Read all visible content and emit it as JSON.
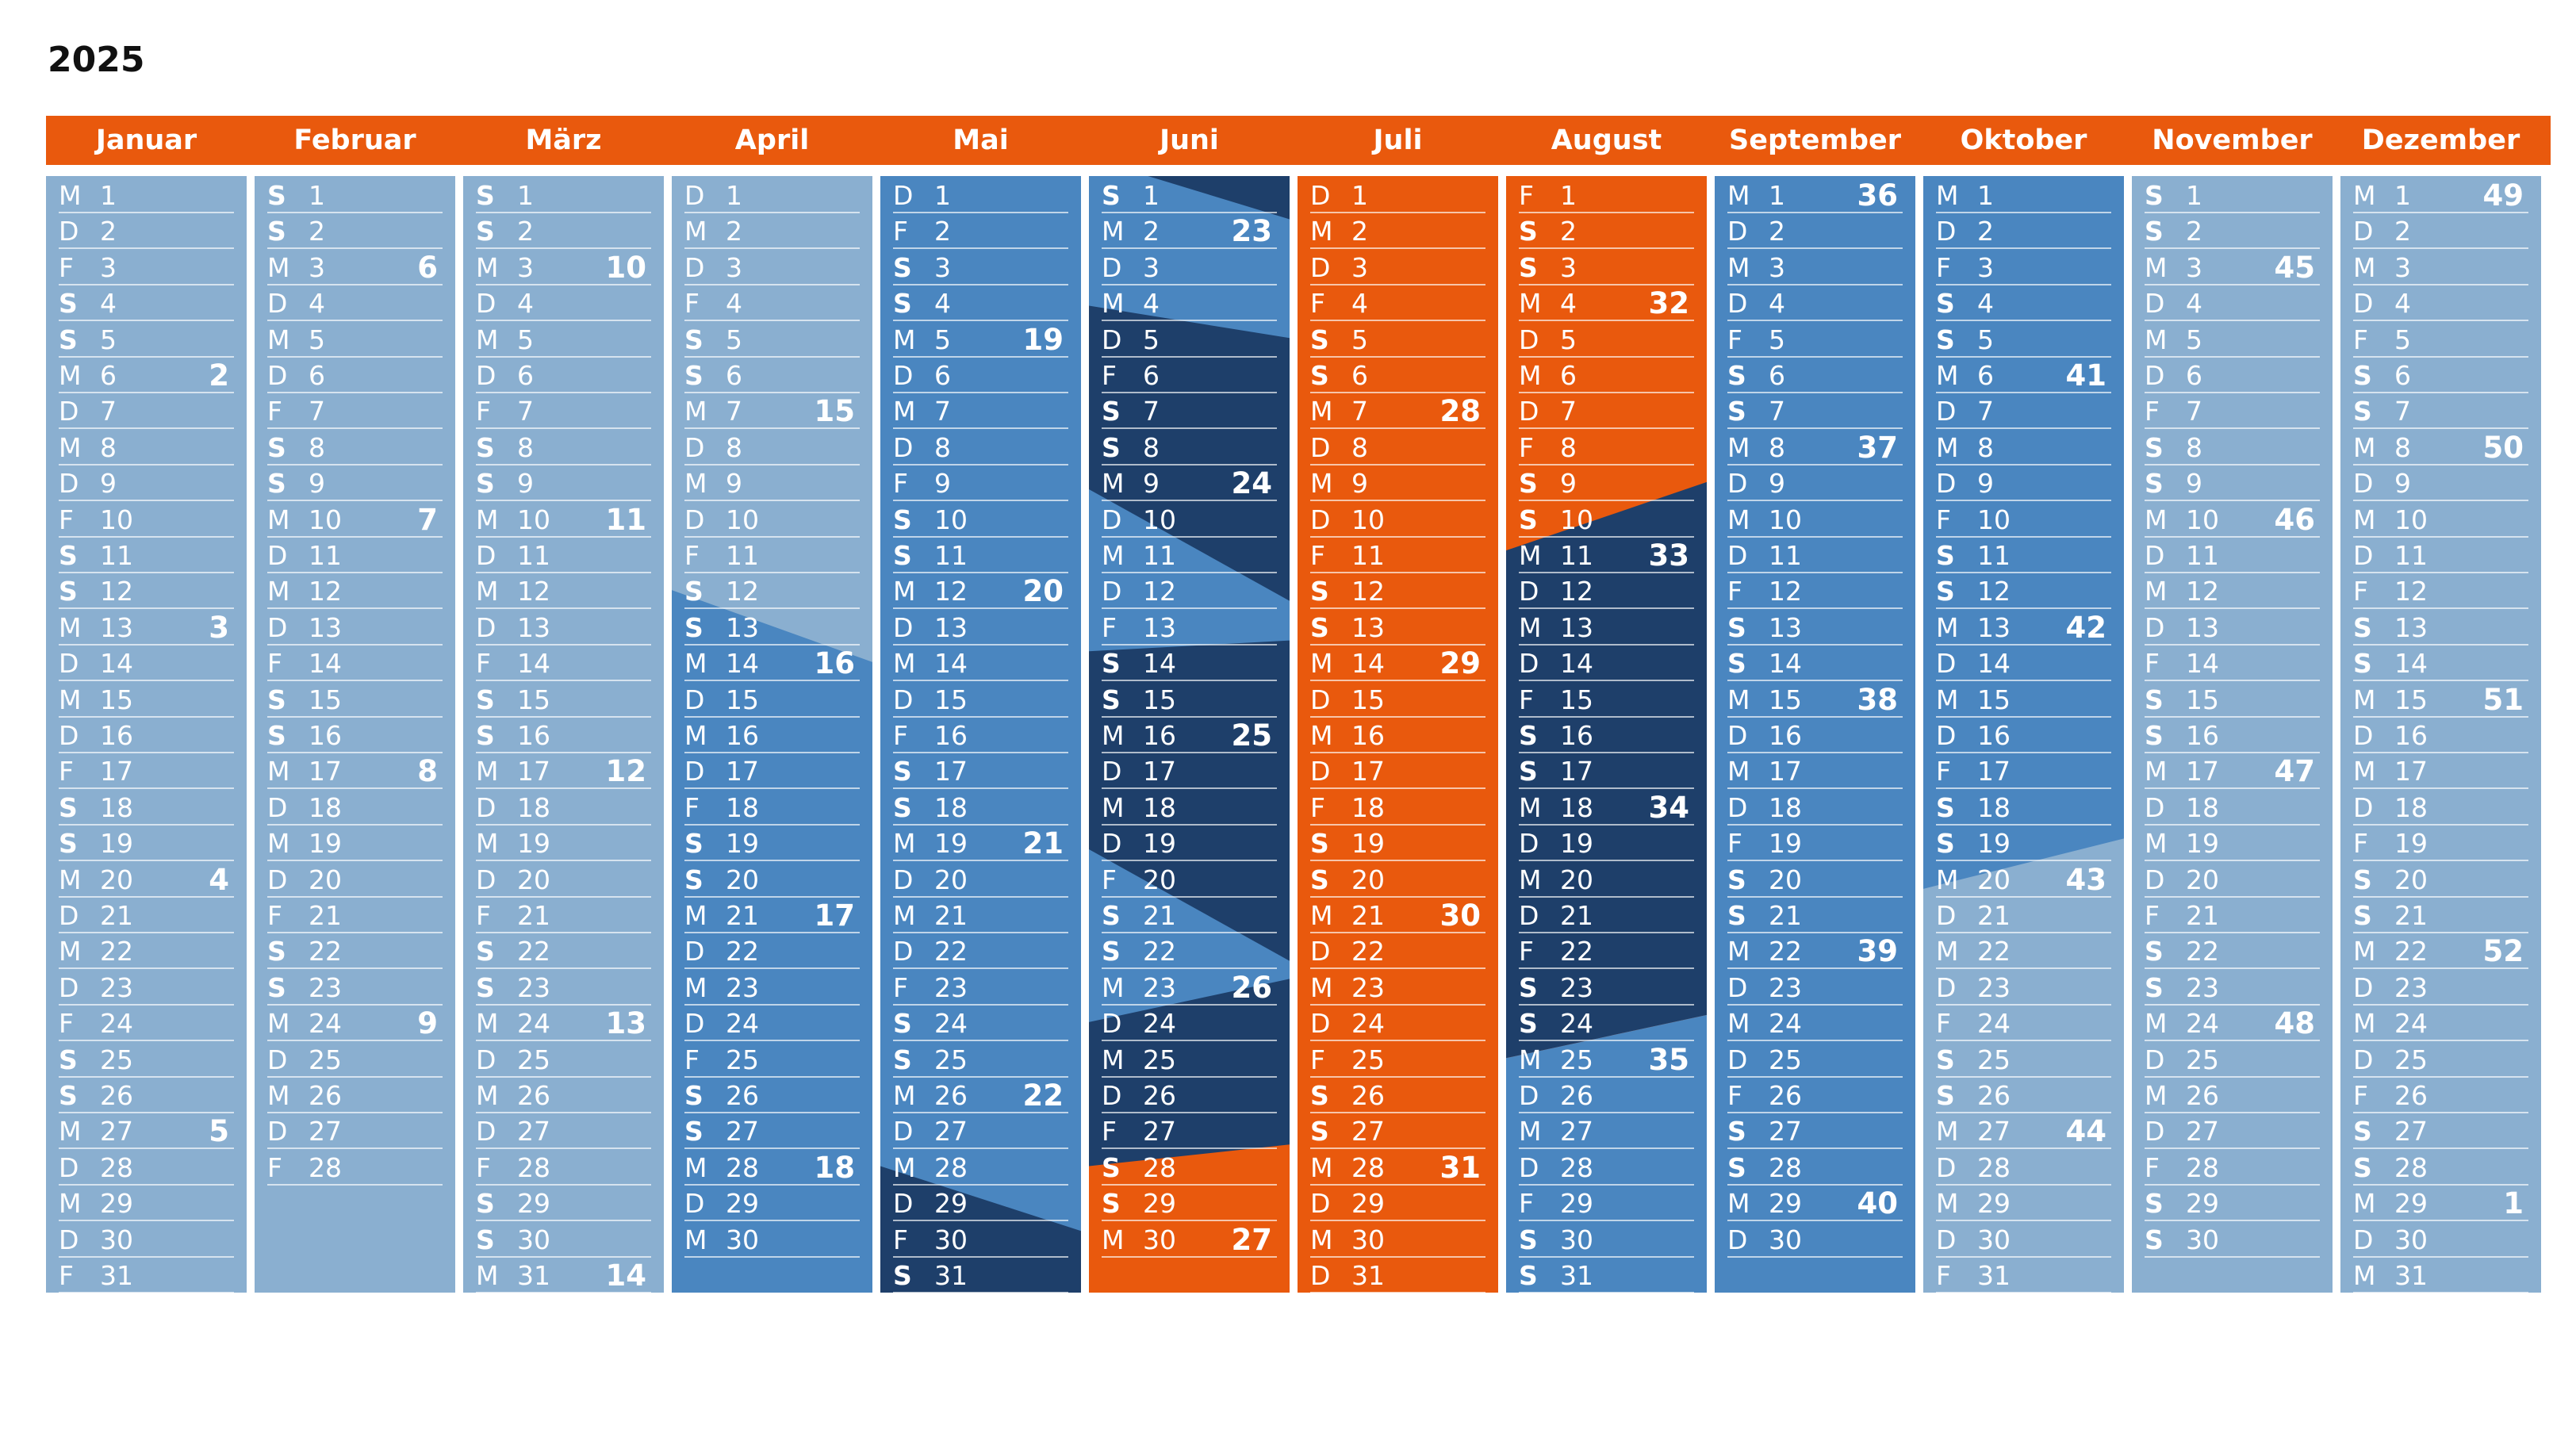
{
  "year": "2025",
  "colors": {
    "header": "#e9590d",
    "light": "#8aafd0",
    "mid": "#4a86c0",
    "dark": "#1e3f6a",
    "orange": "#e9590d"
  },
  "months": [
    {
      "name": "Januar",
      "start": 3,
      "days": 31,
      "weeks": {
        "6": "2",
        "13": "3",
        "20": "4",
        "27": "5"
      },
      "bands": [
        {
          "color": "light"
        }
      ]
    },
    {
      "name": "Februar",
      "start": 6,
      "days": 28,
      "weeks": {
        "3": "6",
        "10": "7",
        "17": "8",
        "24": "9"
      },
      "bands": [
        {
          "color": "light"
        }
      ]
    },
    {
      "name": "März",
      "start": 6,
      "days": 31,
      "weeks": {
        "3": "10",
        "10": "11",
        "17": "12",
        "24": "13",
        "31": "14"
      },
      "bands": [
        {
          "color": "light"
        }
      ]
    },
    {
      "name": "April",
      "start": 2,
      "days": 30,
      "weeks": {
        "7": "15",
        "14": "16",
        "21": "17",
        "28": "18"
      },
      "bands": [
        {
          "color": "light"
        },
        {
          "color": "mid",
          "from": 11.5,
          "to": 13.5
        }
      ]
    },
    {
      "name": "Mai",
      "start": 4,
      "days": 31,
      "weeks": {
        "5": "19",
        "12": "20",
        "19": "21",
        "26": "22"
      },
      "bands": [
        {
          "color": "mid"
        },
        {
          "color": "dark",
          "from": 27.5,
          "to": 29.3
        }
      ]
    },
    {
      "name": "Juni",
      "start": 0,
      "days": 30,
      "weeks": {
        "2": "23",
        "9": "24",
        "16": "25",
        "23": "26",
        "30": "27"
      },
      "bands": [
        {
          "color": "dark"
        },
        {
          "color": "mid",
          "from": -0.5,
          "to": 1.2,
          "until": 3.6,
          "until2": 4.5
        },
        {
          "color": "mid",
          "from": 8.7,
          "to": 11.8,
          "until": 13.2,
          "until2": 12.9
        },
        {
          "color": "mid",
          "from": 18.7,
          "to": 21.8,
          "until": 23.5,
          "until2": 22.3
        },
        {
          "color": "orange",
          "from": 27.5,
          "to": 26.9
        }
      ]
    },
    {
      "name": "Juli",
      "start": 2,
      "days": 31,
      "weeks": {
        "7": "28",
        "14": "29",
        "21": "30",
        "28": "31"
      },
      "bands": [
        {
          "color": "orange"
        }
      ]
    },
    {
      "name": "August",
      "start": 5,
      "days": 31,
      "weeks": {
        "4": "32",
        "11": "33",
        "18": "34",
        "25": "35"
      },
      "bands": [
        {
          "color": "orange"
        },
        {
          "color": "dark",
          "from": 10.4,
          "to": 8.5,
          "until": 24.5,
          "until2": 23.3
        },
        {
          "color": "mid",
          "from": 24.5,
          "to": 23.3
        }
      ]
    },
    {
      "name": "September",
      "start": 1,
      "days": 30,
      "weeks": {
        "1": "36",
        "8": "37",
        "15": "38",
        "22": "39",
        "29": "40"
      },
      "bands": [
        {
          "color": "mid"
        }
      ]
    },
    {
      "name": "Oktober",
      "start": 3,
      "days": 31,
      "weeks": {
        "6": "41",
        "13": "42",
        "20": "43",
        "27": "44"
      },
      "bands": [
        {
          "color": "mid"
        },
        {
          "color": "light",
          "from": 19.8,
          "to": 18.4
        }
      ]
    },
    {
      "name": "November",
      "start": 6,
      "days": 30,
      "weeks": {
        "3": "45",
        "10": "46",
        "17": "47",
        "24": "48"
      },
      "bands": [
        {
          "color": "light"
        }
      ]
    },
    {
      "name": "Dezember",
      "start": 1,
      "days": 31,
      "weeks": {
        "1": "49",
        "8": "50",
        "15": "51",
        "22": "52",
        "29": "1"
      },
      "bands": [
        {
          "color": "light"
        }
      ]
    }
  ],
  "weekday_letters": [
    "S",
    "M",
    "D",
    "M",
    "D",
    "F",
    "S"
  ]
}
